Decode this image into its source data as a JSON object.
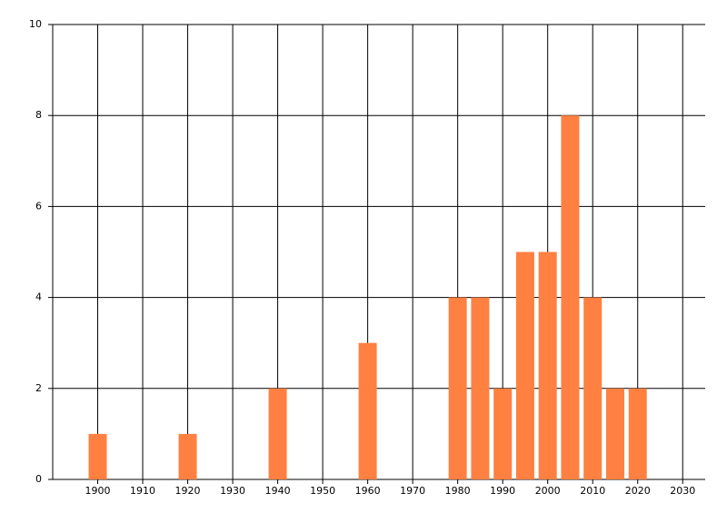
{
  "chart_data": {
    "type": "bar",
    "x": [
      1900,
      1920,
      1940,
      1960,
      1980,
      1985,
      1990,
      1995,
      2000,
      2005,
      2010,
      2015,
      2020
    ],
    "values": [
      1,
      1,
      2,
      3,
      4,
      4,
      2,
      5,
      5,
      8,
      4,
      2,
      2
    ],
    "color": "#ff8040",
    "xlim": [
      1890,
      2035
    ],
    "xticks": [
      1900,
      1910,
      1920,
      1930,
      1940,
      1950,
      1960,
      1970,
      1980,
      1990,
      2000,
      2010,
      2020,
      2030
    ],
    "ylim": [
      0,
      10
    ],
    "yticks": [
      0,
      2,
      4,
      6,
      8,
      10
    ],
    "grid": true
  }
}
